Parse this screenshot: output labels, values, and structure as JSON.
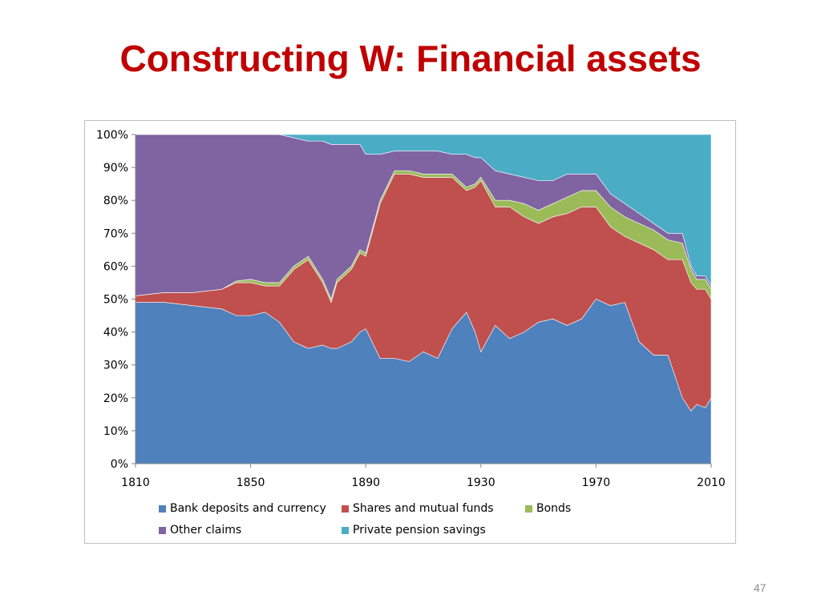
{
  "slide": {
    "title": "Constructing W: Financial assets",
    "page_number": "47"
  },
  "chart_data": {
    "type": "area",
    "stacked": true,
    "normalized": true,
    "x": [
      1810,
      1820,
      1830,
      1840,
      1845,
      1850,
      1855,
      1860,
      1865,
      1870,
      1875,
      1878,
      1880,
      1885,
      1888,
      1890,
      1895,
      1900,
      1905,
      1910,
      1915,
      1920,
      1925,
      1928,
      1930,
      1935,
      1940,
      1945,
      1950,
      1955,
      1960,
      1965,
      1970,
      1975,
      1980,
      1985,
      1990,
      1995,
      2000,
      2003,
      2005,
      2008,
      2010
    ],
    "series": [
      {
        "name": "Bank deposits and currency",
        "color": "#4f81bd",
        "values": [
          49,
          49,
          48,
          47,
          45,
          45,
          46,
          43,
          37,
          35,
          36,
          35,
          35,
          37,
          40,
          41,
          32,
          32,
          31,
          34,
          32,
          41,
          46,
          40,
          34,
          42,
          38,
          40,
          43,
          44,
          42,
          44,
          50,
          48,
          49,
          37,
          33,
          33,
          20,
          16,
          18,
          17,
          20
        ]
      },
      {
        "name": "Shares and mutual funds",
        "color": "#c0504d",
        "values": [
          2,
          3,
          4,
          6,
          10,
          10,
          8,
          11,
          22,
          27,
          19,
          14,
          20,
          22,
          24,
          22,
          47,
          56,
          57,
          53,
          55,
          46,
          37,
          44,
          52,
          36,
          40,
          35,
          30,
          31,
          34,
          34,
          28,
          24,
          20,
          30,
          32,
          29,
          42,
          39,
          35,
          36,
          30
        ]
      },
      {
        "name": "Bonds",
        "color": "#9bbb59",
        "values": [
          0,
          0,
          0,
          0,
          0.5,
          1,
          1,
          1,
          1,
          1,
          1,
          1,
          1,
          1,
          1,
          1,
          1,
          1,
          1,
          1,
          1,
          1,
          1,
          1,
          1,
          2,
          2,
          4,
          4,
          4,
          5,
          5,
          5,
          6,
          6,
          6,
          6,
          6,
          5,
          4,
          3,
          3,
          3
        ]
      },
      {
        "name": "Other claims",
        "color": "#8064a2",
        "values": [
          49,
          48,
          48,
          47,
          44.5,
          44,
          45,
          45,
          39,
          35,
          42,
          47,
          41,
          37,
          32,
          30,
          14,
          6,
          6,
          7,
          7,
          6,
          10,
          8,
          6,
          9,
          8,
          8,
          9,
          7,
          7,
          5,
          5,
          4,
          4,
          3,
          2,
          2,
          3,
          1,
          1,
          1,
          1
        ]
      },
      {
        "name": "Private pension savings",
        "color": "#4bacc6",
        "values": [
          0,
          0,
          0,
          0,
          0,
          0,
          0,
          0,
          1,
          2,
          2,
          3,
          3,
          3,
          3,
          6,
          6,
          5,
          5,
          5,
          5,
          6,
          6,
          7,
          7,
          11,
          12,
          13,
          14,
          14,
          12,
          12,
          12,
          18,
          21,
          24,
          27,
          30,
          30,
          40,
          43,
          43,
          46
        ]
      }
    ],
    "xlabel": "",
    "ylabel": "",
    "xlim": [
      1810,
      2010
    ],
    "ylim": [
      0,
      100
    ],
    "x_ticks": [
      "1810",
      "1850",
      "1890",
      "1930",
      "1970",
      "2010"
    ],
    "y_ticks": [
      "0%",
      "10%",
      "20%",
      "30%",
      "40%",
      "50%",
      "60%",
      "70%",
      "80%",
      "90%",
      "100%"
    ],
    "grid": false,
    "legend_position": "bottom"
  }
}
